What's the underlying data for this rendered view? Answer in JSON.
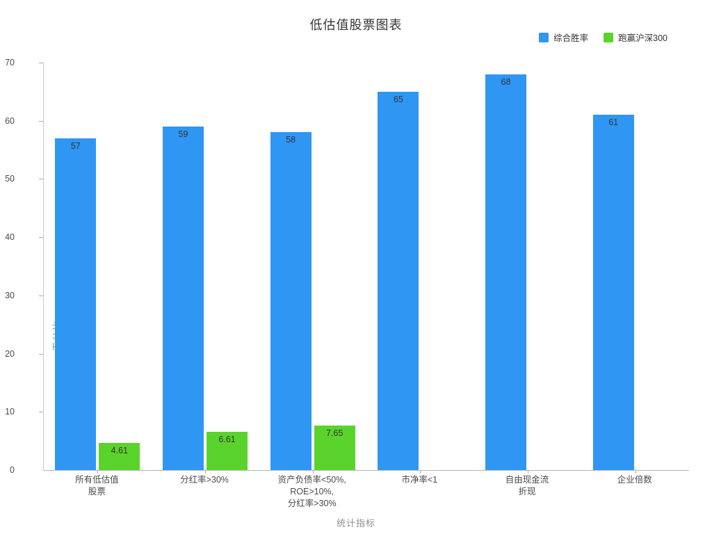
{
  "title": "低估值股票图表",
  "legend": [
    {
      "label": "综合胜率",
      "color": "#2f96f3"
    },
    {
      "label": "跑赢沪深300",
      "color": "#5ad42c"
    }
  ],
  "colors": {
    "blue": "#2f96f3",
    "green": "#5ad42c"
  },
  "chart_data": {
    "type": "bar",
    "title": "低估值股票图表",
    "categories": [
      "所有低估值\n股票",
      "分红率>30%",
      "资产负债率<50%,\nROE>10%,\n分红率>30%",
      "市净率<1",
      "自由现金流\n折现",
      "企业倍数"
    ],
    "series": [
      {
        "name": "综合胜率",
        "color": "#2f96f3",
        "values": [
          57,
          59,
          58,
          65,
          68,
          61
        ]
      },
      {
        "name": "跑赢沪深300",
        "color": "#5ad42c",
        "values": [
          4.61,
          6.61,
          7.65,
          0,
          0,
          0
        ]
      }
    ],
    "xlabel": "统计指标",
    "ylabel": "百分比",
    "ylim": [
      0,
      70
    ],
    "yticks": [
      0,
      10,
      20,
      30,
      40,
      50,
      60,
      70
    ],
    "grid": false,
    "legend_position": "top-right",
    "value_labels": "inside-top"
  }
}
